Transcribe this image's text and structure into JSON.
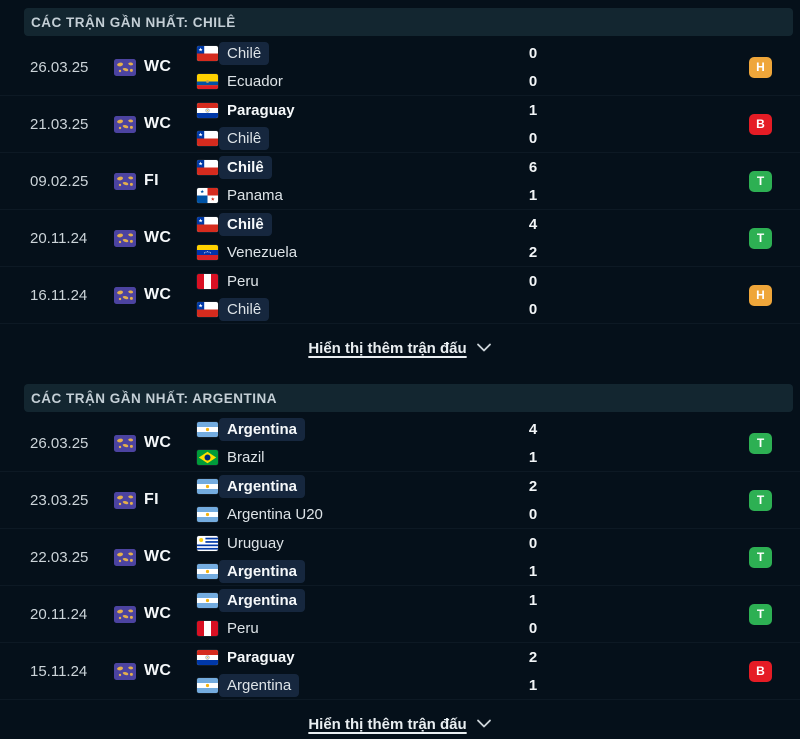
{
  "show_more_label": "Hiển thị thêm trận đấu",
  "badge_colors": {
    "T": "#2db053",
    "H": "#efa63a",
    "B": "#e51c25"
  },
  "colors": {
    "background": "#05101a",
    "section_header_bg": "#132630",
    "team_highlight_bg": "#16273e",
    "competition_icon_bg": "#4c43a0",
    "competition_icon_map": "#e5b04c"
  },
  "sections": [
    {
      "title": "CÁC TRẬN GẦN NHẤT: CHILÊ",
      "matches": [
        {
          "date": "26.03.25",
          "competition": "WC",
          "result": "H",
          "teams": [
            {
              "name": "Chilê",
              "flag": "chile",
              "score": "0",
              "highlight": true,
              "winner": false
            },
            {
              "name": "Ecuador",
              "flag": "ecuador",
              "score": "0",
              "highlight": false,
              "winner": false
            }
          ]
        },
        {
          "date": "21.03.25",
          "competition": "WC",
          "result": "B",
          "teams": [
            {
              "name": "Paraguay",
              "flag": "paraguay",
              "score": "1",
              "highlight": false,
              "winner": true
            },
            {
              "name": "Chilê",
              "flag": "chile",
              "score": "0",
              "highlight": true,
              "winner": false
            }
          ]
        },
        {
          "date": "09.02.25",
          "competition": "FI",
          "result": "T",
          "teams": [
            {
              "name": "Chilê",
              "flag": "chile",
              "score": "6",
              "highlight": true,
              "winner": true
            },
            {
              "name": "Panama",
              "flag": "panama",
              "score": "1",
              "highlight": false,
              "winner": false
            }
          ]
        },
        {
          "date": "20.11.24",
          "competition": "WC",
          "result": "T",
          "teams": [
            {
              "name": "Chilê",
              "flag": "chile",
              "score": "4",
              "highlight": true,
              "winner": true
            },
            {
              "name": "Venezuela",
              "flag": "venezuela",
              "score": "2",
              "highlight": false,
              "winner": false
            }
          ]
        },
        {
          "date": "16.11.24",
          "competition": "WC",
          "result": "H",
          "teams": [
            {
              "name": "Peru",
              "flag": "peru",
              "score": "0",
              "highlight": false,
              "winner": false
            },
            {
              "name": "Chilê",
              "flag": "chile",
              "score": "0",
              "highlight": true,
              "winner": false
            }
          ]
        }
      ]
    },
    {
      "title": "CÁC TRẬN GẦN NHẤT: ARGENTINA",
      "matches": [
        {
          "date": "26.03.25",
          "competition": "WC",
          "result": "T",
          "teams": [
            {
              "name": "Argentina",
              "flag": "argentina",
              "score": "4",
              "highlight": true,
              "winner": true
            },
            {
              "name": "Brazil",
              "flag": "brazil",
              "score": "1",
              "highlight": false,
              "winner": false
            }
          ]
        },
        {
          "date": "23.03.25",
          "competition": "FI",
          "result": "T",
          "teams": [
            {
              "name": "Argentina",
              "flag": "argentina",
              "score": "2",
              "highlight": true,
              "winner": true
            },
            {
              "name": "Argentina U20",
              "flag": "argentina",
              "score": "0",
              "highlight": false,
              "winner": false
            }
          ]
        },
        {
          "date": "22.03.25",
          "competition": "WC",
          "result": "T",
          "teams": [
            {
              "name": "Uruguay",
              "flag": "uruguay",
              "score": "0",
              "highlight": false,
              "winner": false
            },
            {
              "name": "Argentina",
              "flag": "argentina",
              "score": "1",
              "highlight": true,
              "winner": true
            }
          ]
        },
        {
          "date": "20.11.24",
          "competition": "WC",
          "result": "T",
          "teams": [
            {
              "name": "Argentina",
              "flag": "argentina",
              "score": "1",
              "highlight": true,
              "winner": true
            },
            {
              "name": "Peru",
              "flag": "peru",
              "score": "0",
              "highlight": false,
              "winner": false
            }
          ]
        },
        {
          "date": "15.11.24",
          "competition": "WC",
          "result": "B",
          "teams": [
            {
              "name": "Paraguay",
              "flag": "paraguay",
              "score": "2",
              "highlight": false,
              "winner": true
            },
            {
              "name": "Argentina",
              "flag": "argentina",
              "score": "1",
              "highlight": true,
              "winner": false
            }
          ]
        }
      ]
    }
  ]
}
